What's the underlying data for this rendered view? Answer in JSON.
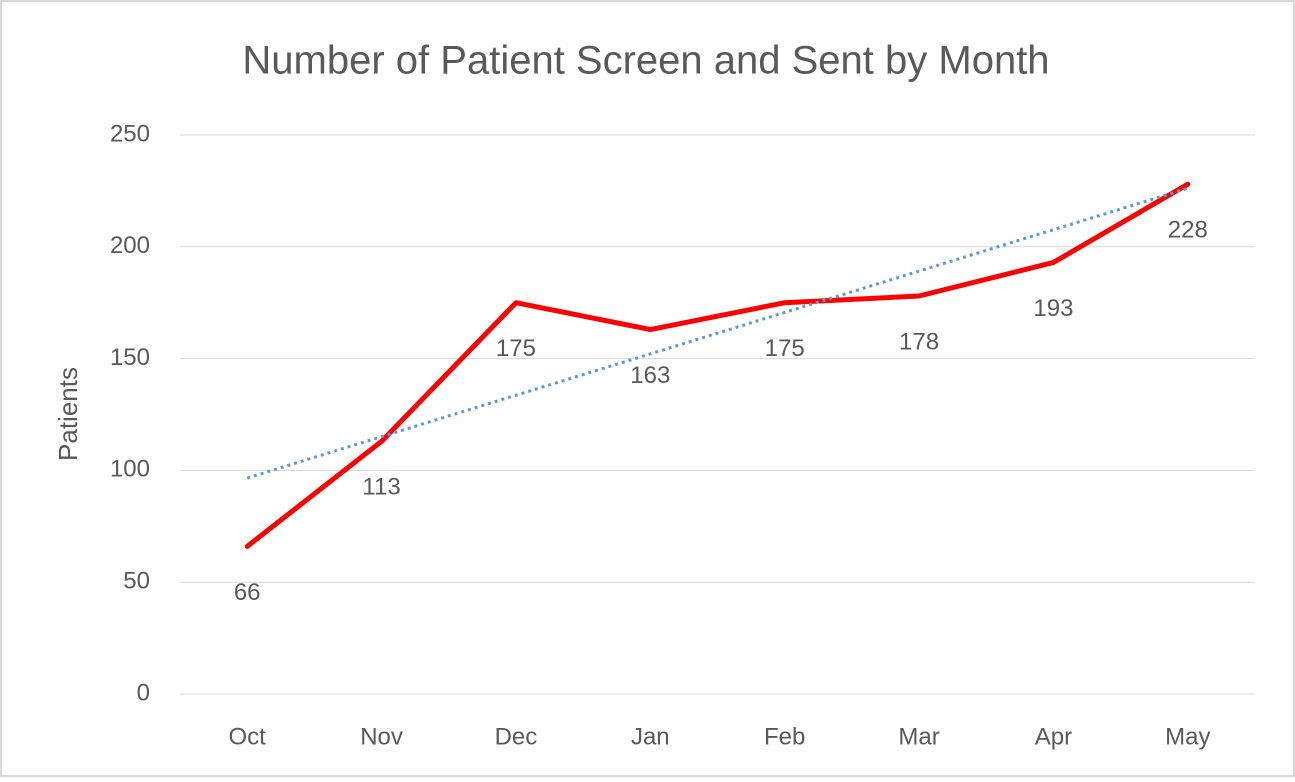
{
  "chart_data": {
    "type": "line",
    "title": "Number of Patient Screen and Sent by Month",
    "y_label": "Patients",
    "categories": [
      "Oct",
      "Nov",
      "Dec",
      "Jan",
      "Feb",
      "Mar",
      "Apr",
      "May"
    ],
    "series": [
      {
        "color": "#ff0000",
        "values": [
          66,
          113,
          175,
          163,
          175,
          178,
          193,
          228
        ]
      }
    ],
    "data_labels": true,
    "trendline": {
      "type": "linear",
      "color": "#5b9bd5"
    },
    "ylim": [
      0,
      250
    ],
    "yticks": [
      0,
      50,
      100,
      150,
      200,
      250
    ],
    "grid": true
  }
}
